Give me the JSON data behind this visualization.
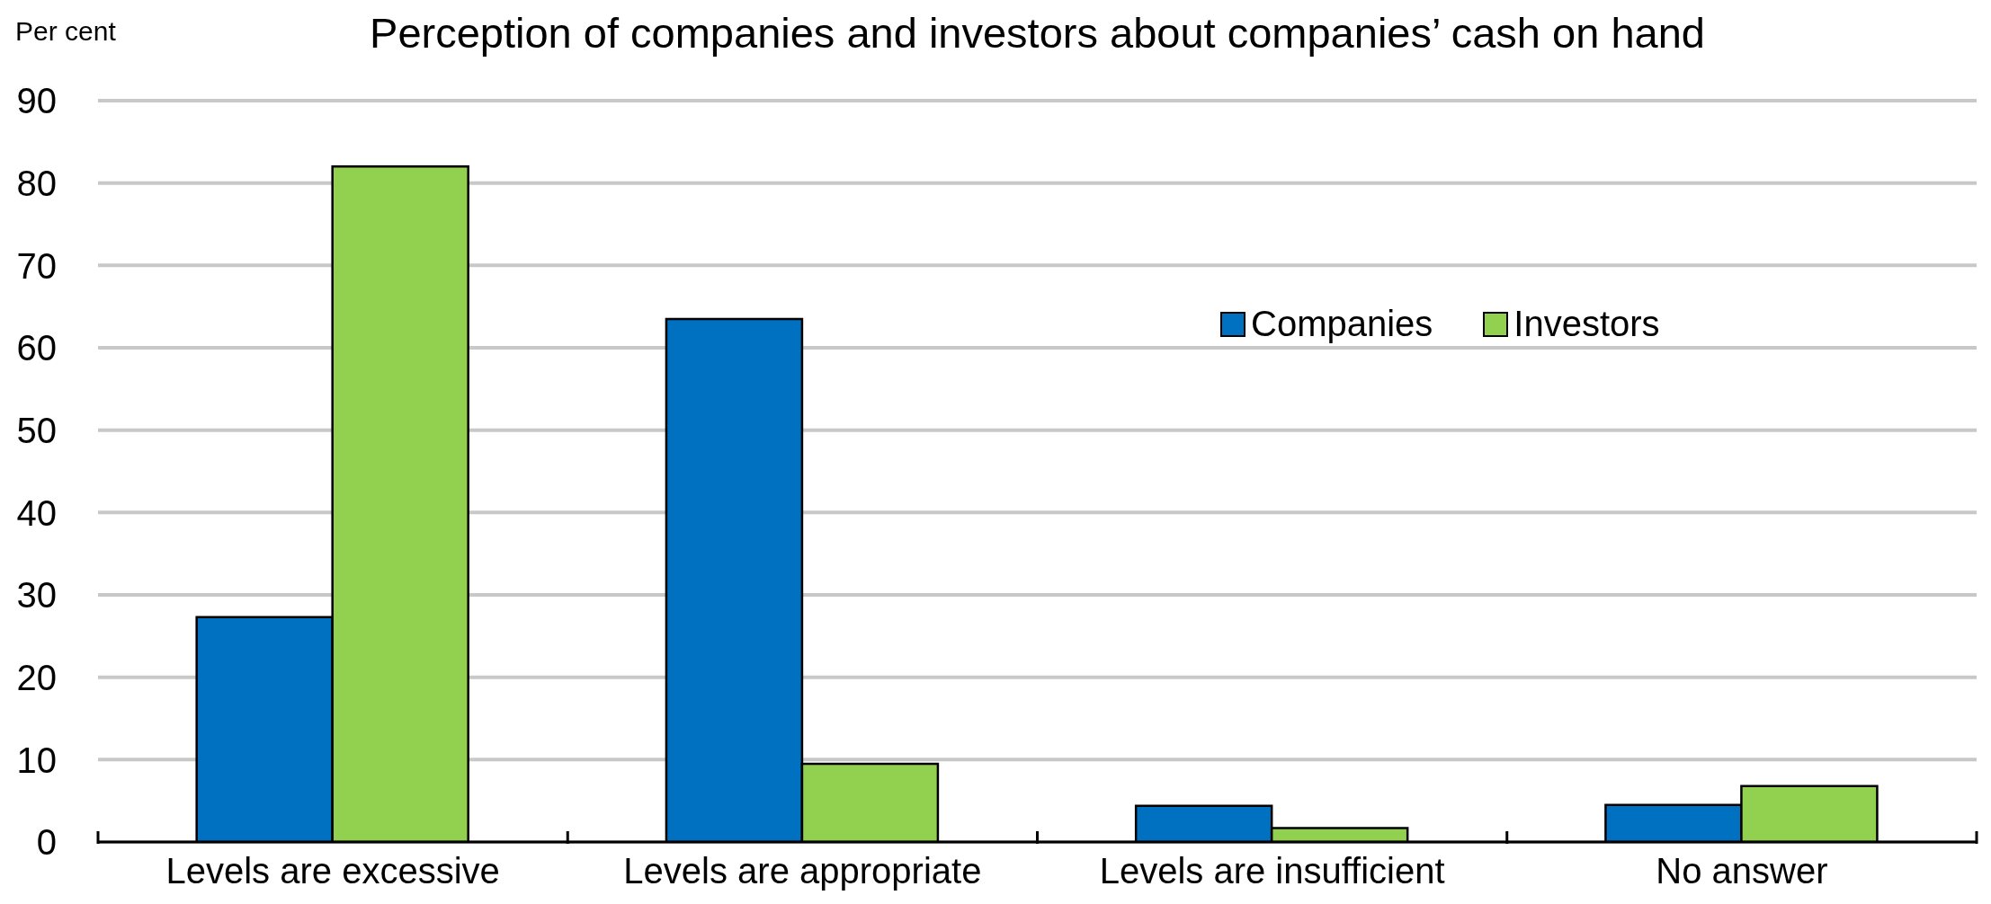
{
  "chart_data": {
    "type": "bar",
    "title": "Perception of companies and investors about companies’ cash on hand",
    "ylabel": "Per cent",
    "categories": [
      "Levels are excessive",
      "Levels are appropriate",
      "Levels are insufficient",
      "No answer"
    ],
    "series": [
      {
        "name": "Companies",
        "color": "#0070c0",
        "values": [
          27.3,
          63.5,
          4.4,
          4.5
        ]
      },
      {
        "name": "Investors",
        "color": "#92d050",
        "values": [
          82,
          9.5,
          1.7,
          6.8
        ]
      }
    ],
    "ylim": [
      0,
      90
    ],
    "yticks": [
      0,
      10,
      20,
      30,
      40,
      50,
      60,
      70,
      80,
      90
    ],
    "grid": "y",
    "legend": "top right"
  }
}
